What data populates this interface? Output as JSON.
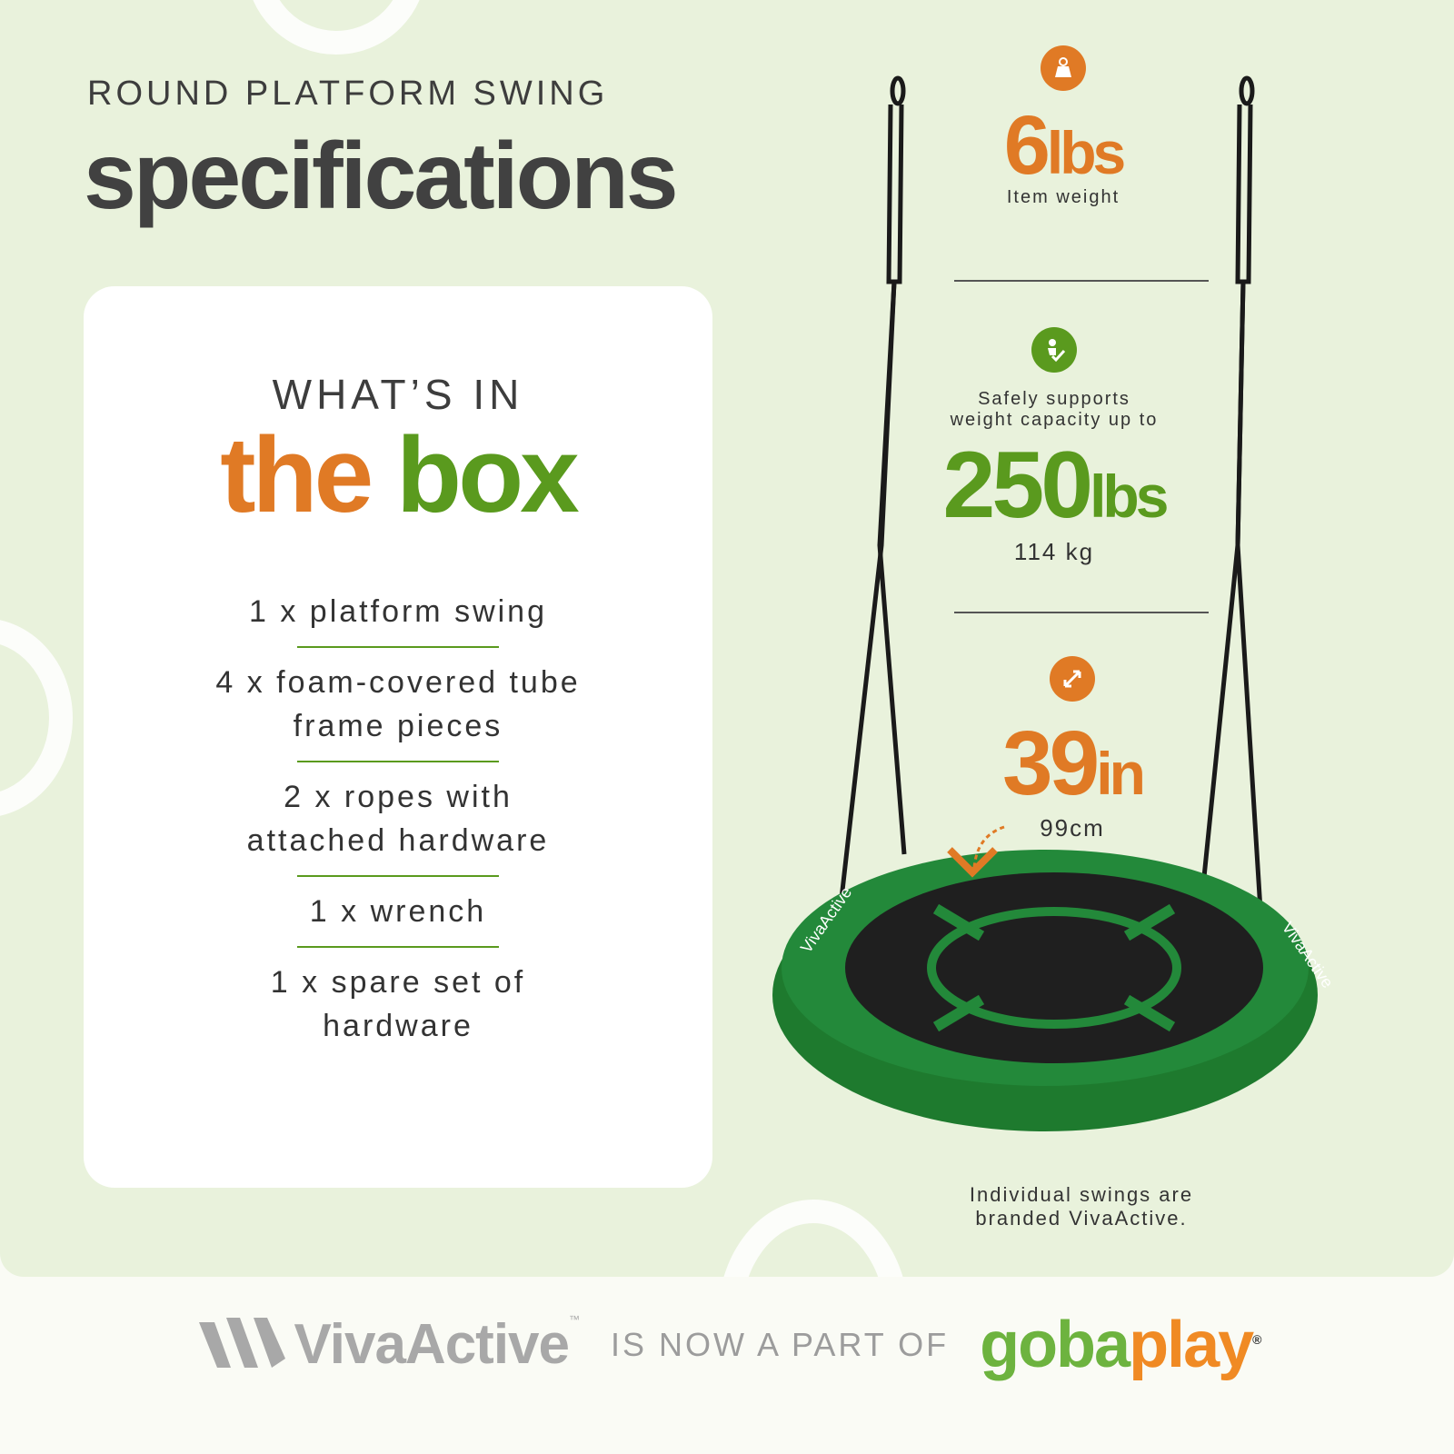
{
  "header": {
    "subtitle": "ROUND PLATFORM SWING",
    "title": "specifications"
  },
  "box": {
    "heading_line1": "WHAT’S IN",
    "heading_word1": "the",
    "heading_word2": "box",
    "items": [
      "1 x platform swing",
      "4 x foam-covered tube frame pieces",
      "2 x ropes with attached hardware",
      "1 x wrench",
      "1 x spare set of hardware"
    ]
  },
  "specs": {
    "weight": {
      "icon": "weight-icon",
      "value": "6",
      "unit": "lbs",
      "label": "Item weight"
    },
    "capacity": {
      "icon": "person-check-icon",
      "label_line1": "Safely supports",
      "label_line2": "weight capacity up to",
      "value": "250",
      "unit": "lbs",
      "metric": "114 kg"
    },
    "diameter": {
      "icon": "resize-arrows-icon",
      "value": "39",
      "unit": "in",
      "metric": "99cm"
    }
  },
  "swing": {
    "brand_print": "VivaActive"
  },
  "note": {
    "line1": "Individual swings are",
    "line2": "branded VivaActive."
  },
  "footer": {
    "brand_left": "VivaActive",
    "tm": "™",
    "connector": "IS NOW A PART OF",
    "brand_right_part1": "goba",
    "brand_right_part2": "play",
    "registered": "®"
  },
  "colors": {
    "orange": "#e07a25",
    "green": "#5a9a1e",
    "background": "#e9f2dc"
  }
}
